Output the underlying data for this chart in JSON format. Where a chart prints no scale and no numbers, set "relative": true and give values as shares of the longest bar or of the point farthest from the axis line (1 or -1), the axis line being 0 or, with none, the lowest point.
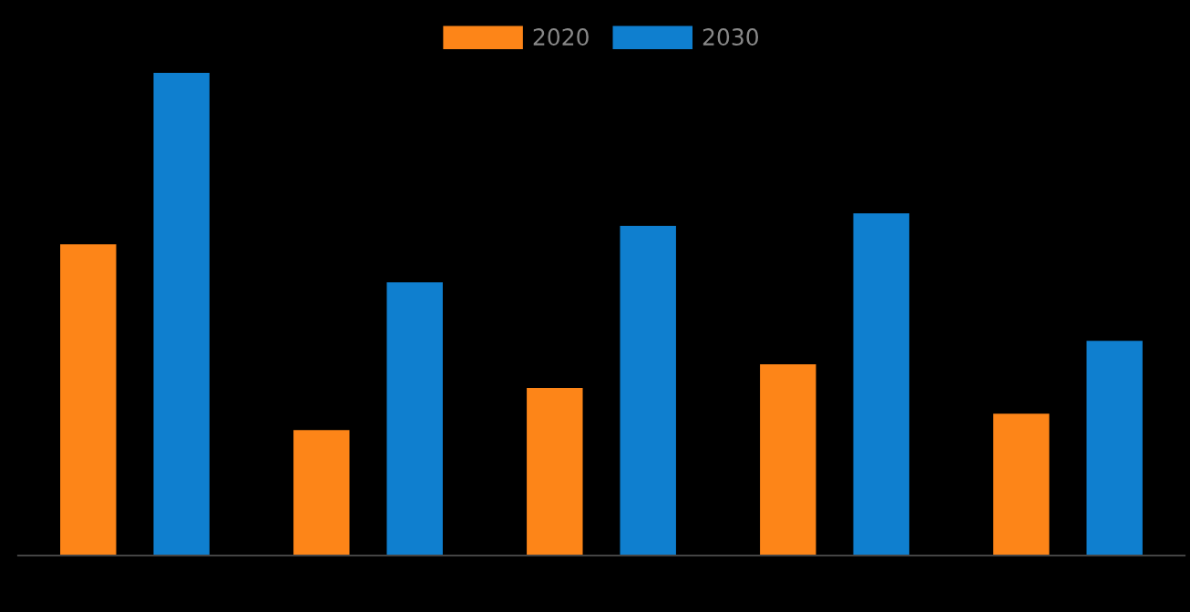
{
  "chart_data": {
    "type": "bar",
    "relative": true,
    "categories": [
      null,
      null,
      null,
      null,
      null
    ],
    "legend": "top",
    "series": [
      {
        "name": "2020",
        "color": "#fd8518",
        "values": [
          0.645,
          0.26,
          0.347,
          0.396,
          0.294
        ]
      },
      {
        "name": "2030",
        "color": "#0f7fcf",
        "values": [
          1.0,
          0.566,
          0.683,
          0.709,
          0.445
        ]
      }
    ]
  }
}
